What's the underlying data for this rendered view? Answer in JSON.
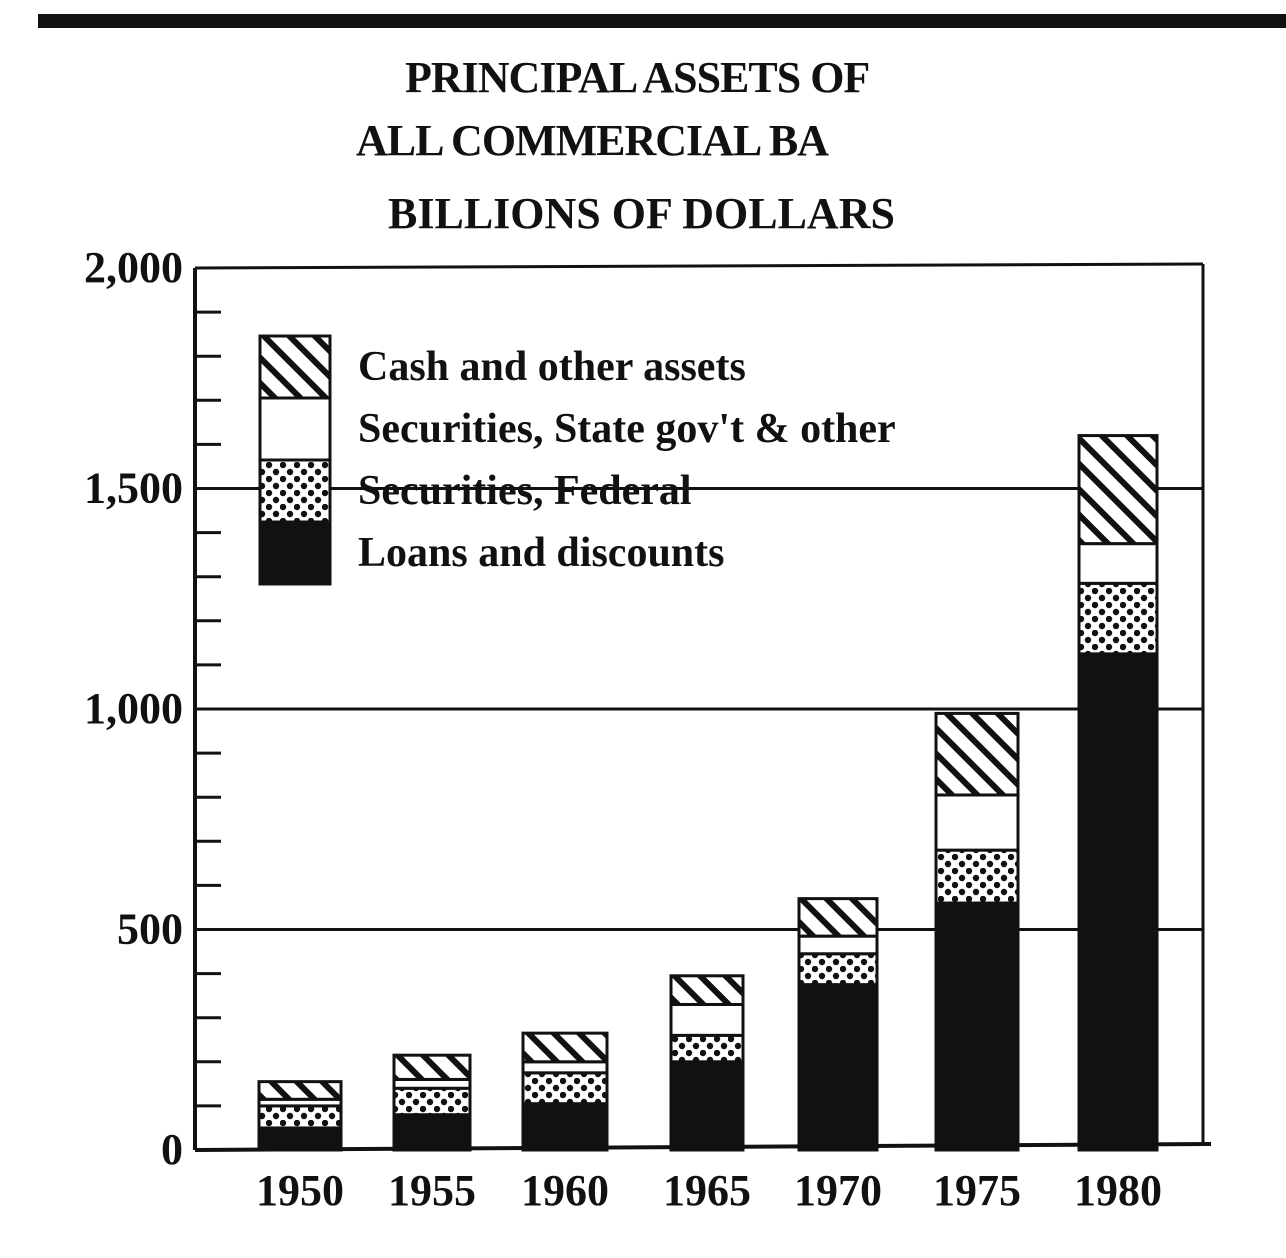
{
  "chart_data": {
    "type": "bar",
    "stacked": true,
    "title": [
      "PRINCIPAL ASSETS OF",
      "ALL COMMERCIAL BA"
    ],
    "subtitle": "BILLIONS OF DOLLARS",
    "xlabel": "",
    "ylabel": "",
    "categories": [
      "1950",
      "1955",
      "1960",
      "1965",
      "1970",
      "1975",
      "1980"
    ],
    "y_tick_labels": [
      "0",
      "500",
      "1,000",
      "1,500",
      "2,000"
    ],
    "y_tick_values": [
      0,
      500,
      1000,
      1500,
      2000
    ],
    "ylim": [
      0,
      2000
    ],
    "grid": "major horizontal lines",
    "legend_position": "top-left",
    "series": [
      {
        "name": "Loans and discounts",
        "pattern": "solid-black",
        "values": [
          50,
          80,
          105,
          200,
          375,
          560,
          1125
        ]
      },
      {
        "name": "Securities, Federal",
        "pattern": "dots",
        "values": [
          50,
          60,
          70,
          60,
          70,
          120,
          160
        ]
      },
      {
        "name": "Securities, State gov't & other",
        "pattern": "white",
        "values": [
          15,
          20,
          25,
          70,
          40,
          125,
          90
        ]
      },
      {
        "name": "Cash and other assets",
        "pattern": "diagonal-hatch",
        "values": [
          40,
          55,
          65,
          65,
          85,
          185,
          245
        ]
      }
    ],
    "legend_order": [
      "Cash and other assets",
      "Securities, State gov't & other",
      "Securities, Federal",
      "Loans and discounts"
    ]
  },
  "colors": {
    "ink": "#111111",
    "paper": "#ffffff"
  }
}
